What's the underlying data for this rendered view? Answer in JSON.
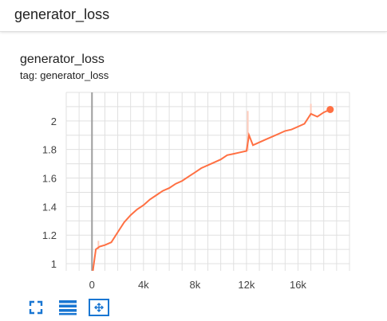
{
  "header": {
    "title": "generator_loss"
  },
  "card": {
    "title": "generator_loss",
    "tag": "tag: generator_loss"
  },
  "toolbar": {
    "buttons": [
      {
        "icon": "fullscreen-icon"
      },
      {
        "icon": "data-table-icon"
      },
      {
        "icon": "fit-domain-icon"
      }
    ]
  },
  "colors": {
    "line": "#ff7043",
    "raw_line": "#ffccbc",
    "grid": "#e0e0e0",
    "axis": "#9e9e9e",
    "toolbar_icon": "#1976d2"
  },
  "chart_data": {
    "type": "line",
    "title": "generator_loss",
    "xlabel": "",
    "ylabel": "",
    "xlim": [
      -2000,
      20000
    ],
    "ylim": [
      0.95,
      2.2
    ],
    "xticks": [
      0,
      4000,
      8000,
      12000,
      16000
    ],
    "xtick_labels": [
      "0",
      "4k",
      "8k",
      "12k",
      "16k"
    ],
    "yticks": [
      1,
      1.2,
      1.4,
      1.6,
      1.8,
      2
    ],
    "ytick_labels": [
      "1",
      "1.2",
      "1.4",
      "1.6",
      "1.8",
      "2"
    ],
    "grid": true,
    "series": [
      {
        "smoothed": true,
        "x": [
          0,
          100,
          300,
          600,
          1000,
          1500,
          2000,
          2500,
          3000,
          3500,
          4000,
          4500,
          5000,
          5500,
          6000,
          6500,
          7000,
          7500,
          8000,
          8500,
          9000,
          9500,
          10000,
          10500,
          11000,
          11500,
          12000,
          12200,
          12500,
          13000,
          13500,
          14000,
          14500,
          15000,
          15500,
          16000,
          16500,
          17000,
          17500,
          18000,
          18500
        ],
        "y": [
          0.9,
          0.97,
          1.1,
          1.12,
          1.13,
          1.15,
          1.22,
          1.29,
          1.34,
          1.38,
          1.41,
          1.45,
          1.48,
          1.51,
          1.53,
          1.56,
          1.58,
          1.61,
          1.64,
          1.67,
          1.69,
          1.71,
          1.73,
          1.76,
          1.77,
          1.78,
          1.79,
          1.9,
          1.83,
          1.85,
          1.87,
          1.89,
          1.91,
          1.93,
          1.94,
          1.96,
          1.98,
          2.05,
          2.03,
          2.06,
          2.08
        ]
      }
    ],
    "raw_spikes": [
      {
        "x": 500,
        "y": 1.16
      },
      {
        "x": 12100,
        "y": 2.07
      },
      {
        "x": 17000,
        "y": 2.12
      }
    ]
  }
}
